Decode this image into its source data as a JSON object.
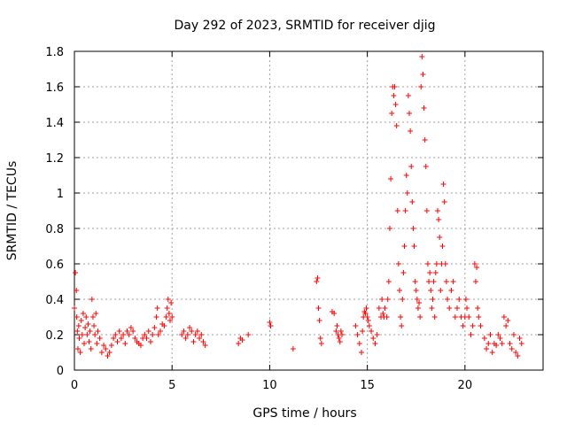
{
  "chart_data": {
    "type": "scatter",
    "title": "Day 292 of 2023, SRMTID for receiver djig",
    "xlabel": "GPS time / hours",
    "ylabel": "SRMTID / TECUs",
    "xlim": [
      0,
      24
    ],
    "ylim": [
      0,
      1.8
    ],
    "grid": true,
    "marker": "+",
    "marker_color": "#ff0000",
    "x_ticks": [
      0,
      5,
      10,
      15,
      20
    ],
    "x_tick_labels": [
      "0",
      "5",
      "10",
      "15",
      "20"
    ],
    "y_ticks": [
      0,
      0.2,
      0.4,
      0.6,
      0.8,
      1,
      1.2,
      1.4,
      1.6,
      1.8
    ],
    "y_tick_labels": [
      "0",
      "0.2",
      "0.4",
      "0.6",
      "0.8",
      "1",
      "1.2",
      "1.4",
      "1.6",
      "1.8"
    ],
    "series": [
      {
        "name": "SRMTID",
        "points": [
          [
            0.0,
            0.35
          ],
          [
            0.05,
            0.55
          ],
          [
            0.1,
            0.45
          ],
          [
            0.12,
            0.3
          ],
          [
            0.15,
            0.22
          ],
          [
            0.18,
            0.12
          ],
          [
            0.22,
            0.25
          ],
          [
            0.25,
            0.18
          ],
          [
            0.3,
            0.1
          ],
          [
            0.35,
            0.28
          ],
          [
            0.4,
            0.2
          ],
          [
            0.45,
            0.32
          ],
          [
            0.5,
            0.15
          ],
          [
            0.55,
            0.24
          ],
          [
            0.6,
            0.3
          ],
          [
            0.65,
            0.2
          ],
          [
            0.7,
            0.26
          ],
          [
            0.75,
            0.16
          ],
          [
            0.8,
            0.22
          ],
          [
            0.85,
            0.12
          ],
          [
            0.9,
            0.4
          ],
          [
            0.95,
            0.3
          ],
          [
            1.0,
            0.25
          ],
          [
            1.05,
            0.2
          ],
          [
            1.1,
            0.32
          ],
          [
            1.15,
            0.15
          ],
          [
            1.2,
            0.22
          ],
          [
            1.3,
            0.18
          ],
          [
            1.4,
            0.1
          ],
          [
            1.5,
            0.14
          ],
          [
            1.6,
            0.12
          ],
          [
            1.7,
            0.08
          ],
          [
            1.8,
            0.1
          ],
          [
            1.9,
            0.14
          ],
          [
            2.0,
            0.18
          ],
          [
            2.1,
            0.2
          ],
          [
            2.2,
            0.16
          ],
          [
            2.3,
            0.22
          ],
          [
            2.4,
            0.18
          ],
          [
            2.5,
            0.2
          ],
          [
            2.6,
            0.15
          ],
          [
            2.7,
            0.22
          ],
          [
            2.8,
            0.2
          ],
          [
            2.9,
            0.24
          ],
          [
            3.0,
            0.22
          ],
          [
            3.1,
            0.18
          ],
          [
            3.2,
            0.16
          ],
          [
            3.3,
            0.15
          ],
          [
            3.4,
            0.14
          ],
          [
            3.5,
            0.18
          ],
          [
            3.6,
            0.2
          ],
          [
            3.7,
            0.18
          ],
          [
            3.8,
            0.22
          ],
          [
            3.9,
            0.16
          ],
          [
            4.0,
            0.2
          ],
          [
            4.1,
            0.24
          ],
          [
            4.2,
            0.3
          ],
          [
            4.25,
            0.35
          ],
          [
            4.3,
            0.2
          ],
          [
            4.4,
            0.22
          ],
          [
            4.5,
            0.26
          ],
          [
            4.6,
            0.25
          ],
          [
            4.7,
            0.3
          ],
          [
            4.75,
            0.35
          ],
          [
            4.8,
            0.4
          ],
          [
            4.85,
            0.32
          ],
          [
            4.9,
            0.28
          ],
          [
            4.95,
            0.38
          ],
          [
            5.0,
            0.3
          ],
          [
            5.5,
            0.2
          ],
          [
            5.6,
            0.22
          ],
          [
            5.7,
            0.18
          ],
          [
            5.8,
            0.2
          ],
          [
            5.9,
            0.24
          ],
          [
            6.0,
            0.22
          ],
          [
            6.1,
            0.16
          ],
          [
            6.2,
            0.2
          ],
          [
            6.3,
            0.22
          ],
          [
            6.4,
            0.18
          ],
          [
            6.5,
            0.2
          ],
          [
            6.6,
            0.16
          ],
          [
            6.7,
            0.14
          ],
          [
            8.4,
            0.15
          ],
          [
            8.5,
            0.18
          ],
          [
            8.6,
            0.17
          ],
          [
            8.9,
            0.2
          ],
          [
            10.0,
            0.27
          ],
          [
            10.05,
            0.25
          ],
          [
            11.2,
            0.12
          ],
          [
            12.4,
            0.5
          ],
          [
            12.45,
            0.52
          ],
          [
            12.5,
            0.35
          ],
          [
            12.55,
            0.28
          ],
          [
            12.6,
            0.18
          ],
          [
            12.65,
            0.15
          ],
          [
            13.2,
            0.33
          ],
          [
            13.3,
            0.32
          ],
          [
            13.4,
            0.22
          ],
          [
            13.45,
            0.25
          ],
          [
            13.5,
            0.2
          ],
          [
            13.55,
            0.18
          ],
          [
            13.6,
            0.16
          ],
          [
            13.65,
            0.22
          ],
          [
            13.7,
            0.2
          ],
          [
            14.4,
            0.25
          ],
          [
            14.5,
            0.2
          ],
          [
            14.6,
            0.15
          ],
          [
            14.7,
            0.1
          ],
          [
            14.75,
            0.22
          ],
          [
            14.8,
            0.3
          ],
          [
            14.85,
            0.33
          ],
          [
            14.9,
            0.32
          ],
          [
            14.95,
            0.35
          ],
          [
            15.0,
            0.3
          ],
          [
            15.05,
            0.28
          ],
          [
            15.1,
            0.25
          ],
          [
            15.2,
            0.22
          ],
          [
            15.3,
            0.18
          ],
          [
            15.4,
            0.15
          ],
          [
            15.5,
            0.2
          ],
          [
            15.6,
            0.35
          ],
          [
            15.7,
            0.3
          ],
          [
            15.75,
            0.4
          ],
          [
            15.8,
            0.32
          ],
          [
            15.85,
            0.3
          ],
          [
            15.9,
            0.35
          ],
          [
            16.0,
            0.3
          ],
          [
            16.05,
            0.4
          ],
          [
            16.1,
            0.5
          ],
          [
            16.15,
            0.8
          ],
          [
            16.2,
            1.08
          ],
          [
            16.25,
            1.45
          ],
          [
            16.3,
            1.6
          ],
          [
            16.35,
            1.55
          ],
          [
            16.4,
            1.6
          ],
          [
            16.45,
            1.5
          ],
          [
            16.5,
            1.38
          ],
          [
            16.55,
            0.9
          ],
          [
            16.6,
            0.6
          ],
          [
            16.65,
            0.45
          ],
          [
            16.7,
            0.3
          ],
          [
            16.75,
            0.25
          ],
          [
            16.8,
            0.4
          ],
          [
            16.85,
            0.55
          ],
          [
            16.9,
            0.7
          ],
          [
            16.95,
            0.9
          ],
          [
            17.0,
            1.1
          ],
          [
            17.05,
            1.0
          ],
          [
            17.1,
            1.55
          ],
          [
            17.15,
            1.45
          ],
          [
            17.2,
            1.35
          ],
          [
            17.25,
            1.15
          ],
          [
            17.3,
            0.95
          ],
          [
            17.35,
            0.8
          ],
          [
            17.4,
            0.7
          ],
          [
            17.45,
            0.5
          ],
          [
            17.5,
            0.45
          ],
          [
            17.55,
            0.4
          ],
          [
            17.6,
            0.35
          ],
          [
            17.65,
            0.38
          ],
          [
            17.7,
            0.3
          ],
          [
            17.75,
            1.6
          ],
          [
            17.8,
            1.77
          ],
          [
            17.85,
            1.67
          ],
          [
            17.9,
            1.48
          ],
          [
            17.95,
            1.3
          ],
          [
            18.0,
            1.15
          ],
          [
            18.05,
            0.9
          ],
          [
            18.1,
            0.6
          ],
          [
            18.15,
            0.5
          ],
          [
            18.2,
            0.55
          ],
          [
            18.25,
            0.45
          ],
          [
            18.3,
            0.35
          ],
          [
            18.35,
            0.4
          ],
          [
            18.4,
            0.5
          ],
          [
            18.45,
            0.3
          ],
          [
            18.5,
            0.55
          ],
          [
            18.55,
            0.6
          ],
          [
            18.6,
            0.9
          ],
          [
            18.65,
            0.85
          ],
          [
            18.7,
            0.75
          ],
          [
            18.75,
            0.45
          ],
          [
            18.8,
            0.6
          ],
          [
            18.85,
            0.7
          ],
          [
            18.9,
            1.05
          ],
          [
            18.95,
            0.95
          ],
          [
            19.0,
            0.6
          ],
          [
            19.05,
            0.5
          ],
          [
            19.1,
            0.4
          ],
          [
            19.2,
            0.35
          ],
          [
            19.3,
            0.45
          ],
          [
            19.4,
            0.5
          ],
          [
            19.5,
            0.3
          ],
          [
            19.6,
            0.35
          ],
          [
            19.7,
            0.4
          ],
          [
            19.8,
            0.3
          ],
          [
            19.9,
            0.25
          ],
          [
            20.0,
            0.3
          ],
          [
            20.05,
            0.4
          ],
          [
            20.1,
            0.35
          ],
          [
            20.2,
            0.3
          ],
          [
            20.3,
            0.2
          ],
          [
            20.4,
            0.25
          ],
          [
            20.5,
            0.6
          ],
          [
            20.55,
            0.5
          ],
          [
            20.6,
            0.58
          ],
          [
            20.65,
            0.35
          ],
          [
            20.7,
            0.3
          ],
          [
            20.8,
            0.25
          ],
          [
            21.0,
            0.18
          ],
          [
            21.1,
            0.12
          ],
          [
            21.2,
            0.15
          ],
          [
            21.3,
            0.2
          ],
          [
            21.4,
            0.1
          ],
          [
            21.5,
            0.15
          ],
          [
            21.6,
            0.14
          ],
          [
            21.7,
            0.2
          ],
          [
            21.8,
            0.18
          ],
          [
            21.9,
            0.15
          ],
          [
            22.0,
            0.3
          ],
          [
            22.1,
            0.25
          ],
          [
            22.2,
            0.28
          ],
          [
            22.3,
            0.15
          ],
          [
            22.4,
            0.12
          ],
          [
            22.5,
            0.2
          ],
          [
            22.6,
            0.1
          ],
          [
            22.7,
            0.08
          ],
          [
            22.8,
            0.18
          ],
          [
            22.9,
            0.15
          ]
        ]
      }
    ]
  }
}
